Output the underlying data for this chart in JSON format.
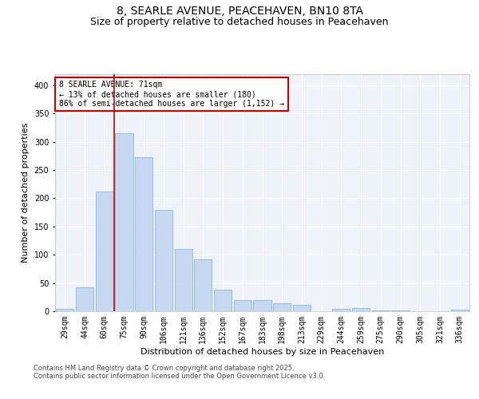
{
  "title_line1": "8, SEARLE AVENUE, PEACEHAVEN, BN10 8TA",
  "title_line2": "Size of property relative to detached houses in Peacehaven",
  "xlabel": "Distribution of detached houses by size in Peacehaven",
  "ylabel": "Number of detached properties",
  "categories": [
    "29sqm",
    "44sqm",
    "60sqm",
    "75sqm",
    "90sqm",
    "106sqm",
    "121sqm",
    "136sqm",
    "152sqm",
    "167sqm",
    "183sqm",
    "198sqm",
    "213sqm",
    "229sqm",
    "244sqm",
    "259sqm",
    "275sqm",
    "290sqm",
    "305sqm",
    "321sqm",
    "336sqm"
  ],
  "values": [
    4,
    42,
    212,
    315,
    272,
    180,
    110,
    92,
    38,
    20,
    20,
    14,
    12,
    0,
    4,
    6,
    1,
    1,
    0,
    0,
    3
  ],
  "bar_color": "#c5d8f0",
  "bar_edge_color": "#7bafd4",
  "vline_color": "#cc0000",
  "annotation_text": "8 SEARLE AVENUE: 71sqm\n← 13% of detached houses are smaller (180)\n86% of semi-detached houses are larger (1,152) →",
  "annotation_box_color": "#cc0000",
  "ylim": [
    0,
    420
  ],
  "yticks": [
    0,
    50,
    100,
    150,
    200,
    250,
    300,
    350,
    400
  ],
  "bg_color": "#eef2f9",
  "grid_color": "#ffffff",
  "footer_line1": "Contains HM Land Registry data © Crown copyright and database right 2025.",
  "footer_line2": "Contains public sector information licensed under the Open Government Licence v3.0.",
  "title_fontsize": 10,
  "subtitle_fontsize": 9,
  "axis_label_fontsize": 8,
  "tick_fontsize": 7,
  "footer_fontsize": 6
}
